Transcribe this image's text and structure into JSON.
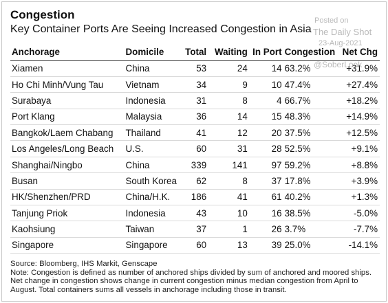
{
  "title": "Congestion",
  "subtitle": "Key Container Ports Are Seeing Increased Congestion in Asia",
  "watermark": {
    "posted": "Posted on",
    "source": "The Daily Shot",
    "date": "23-Aug-2021",
    "handle": "@SoberLook"
  },
  "columns": {
    "anchorage": "Anchorage",
    "domicile": "Domicile",
    "total": "Total",
    "waiting": "Waiting",
    "in_port": "In Port",
    "congestion": "Congestion",
    "net_chg": "Net Chg"
  },
  "rows": [
    {
      "anchorage": "Xiamen",
      "domicile": "China",
      "total": "53",
      "waiting": "24",
      "in_port": "14",
      "congestion": "63.2%",
      "net_chg": "+31.9%"
    },
    {
      "anchorage": "Ho Chi Minh/Vung Tau",
      "domicile": "Vietnam",
      "total": "34",
      "waiting": "9",
      "in_port": "10",
      "congestion": "47.4%",
      "net_chg": "+27.4%"
    },
    {
      "anchorage": "Surabaya",
      "domicile": "Indonesia",
      "total": "31",
      "waiting": "8",
      "in_port": "4",
      "congestion": "66.7%",
      "net_chg": "+18.2%"
    },
    {
      "anchorage": "Port Klang",
      "domicile": "Malaysia",
      "total": "36",
      "waiting": "14",
      "in_port": "15",
      "congestion": "48.3%",
      "net_chg": "+14.9%"
    },
    {
      "anchorage": "Bangkok/Laem Chabang",
      "domicile": "Thailand",
      "total": "41",
      "waiting": "12",
      "in_port": "20",
      "congestion": "37.5%",
      "net_chg": "+12.5%"
    },
    {
      "anchorage": "Los Angeles/Long Beach",
      "domicile": "U.S.",
      "total": "60",
      "waiting": "31",
      "in_port": "28",
      "congestion": "52.5%",
      "net_chg": "+9.1%"
    },
    {
      "anchorage": "Shanghai/Ningbo",
      "domicile": "China",
      "total": "339",
      "waiting": "141",
      "in_port": "97",
      "congestion": "59.2%",
      "net_chg": "+8.8%"
    },
    {
      "anchorage": "Busan",
      "domicile": "South Korea",
      "total": "62",
      "waiting": "8",
      "in_port": "37",
      "congestion": "17.8%",
      "net_chg": "+3.9%"
    },
    {
      "anchorage": "HK/Shenzhen/PRD",
      "domicile": "China/H.K.",
      "total": "186",
      "waiting": "41",
      "in_port": "61",
      "congestion": "40.2%",
      "net_chg": "+1.3%"
    },
    {
      "anchorage": "Tanjung Priok",
      "domicile": "Indonesia",
      "total": "43",
      "waiting": "10",
      "in_port": "16",
      "congestion": "38.5%",
      "net_chg": "-5.0%"
    },
    {
      "anchorage": "Kaohsiung",
      "domicile": "Taiwan",
      "total": "37",
      "waiting": "1",
      "in_port": "26",
      "congestion": "3.7%",
      "net_chg": "-7.7%"
    },
    {
      "anchorage": "Singapore",
      "domicile": "Singapore",
      "total": "60",
      "waiting": "13",
      "in_port": "39",
      "congestion": "25.0%",
      "net_chg": "-14.1%"
    }
  ],
  "footnote": {
    "source": "Source: Bloomberg, IHS Markit, Genscape",
    "note": "Note: Congestion is defined as number of anchored ships divided by sum of anchored and moored ships. Net change in congestion shows change in current congestion minus median congestion from April to August. Total containers sums all vessels in anchorage including those in transit."
  }
}
